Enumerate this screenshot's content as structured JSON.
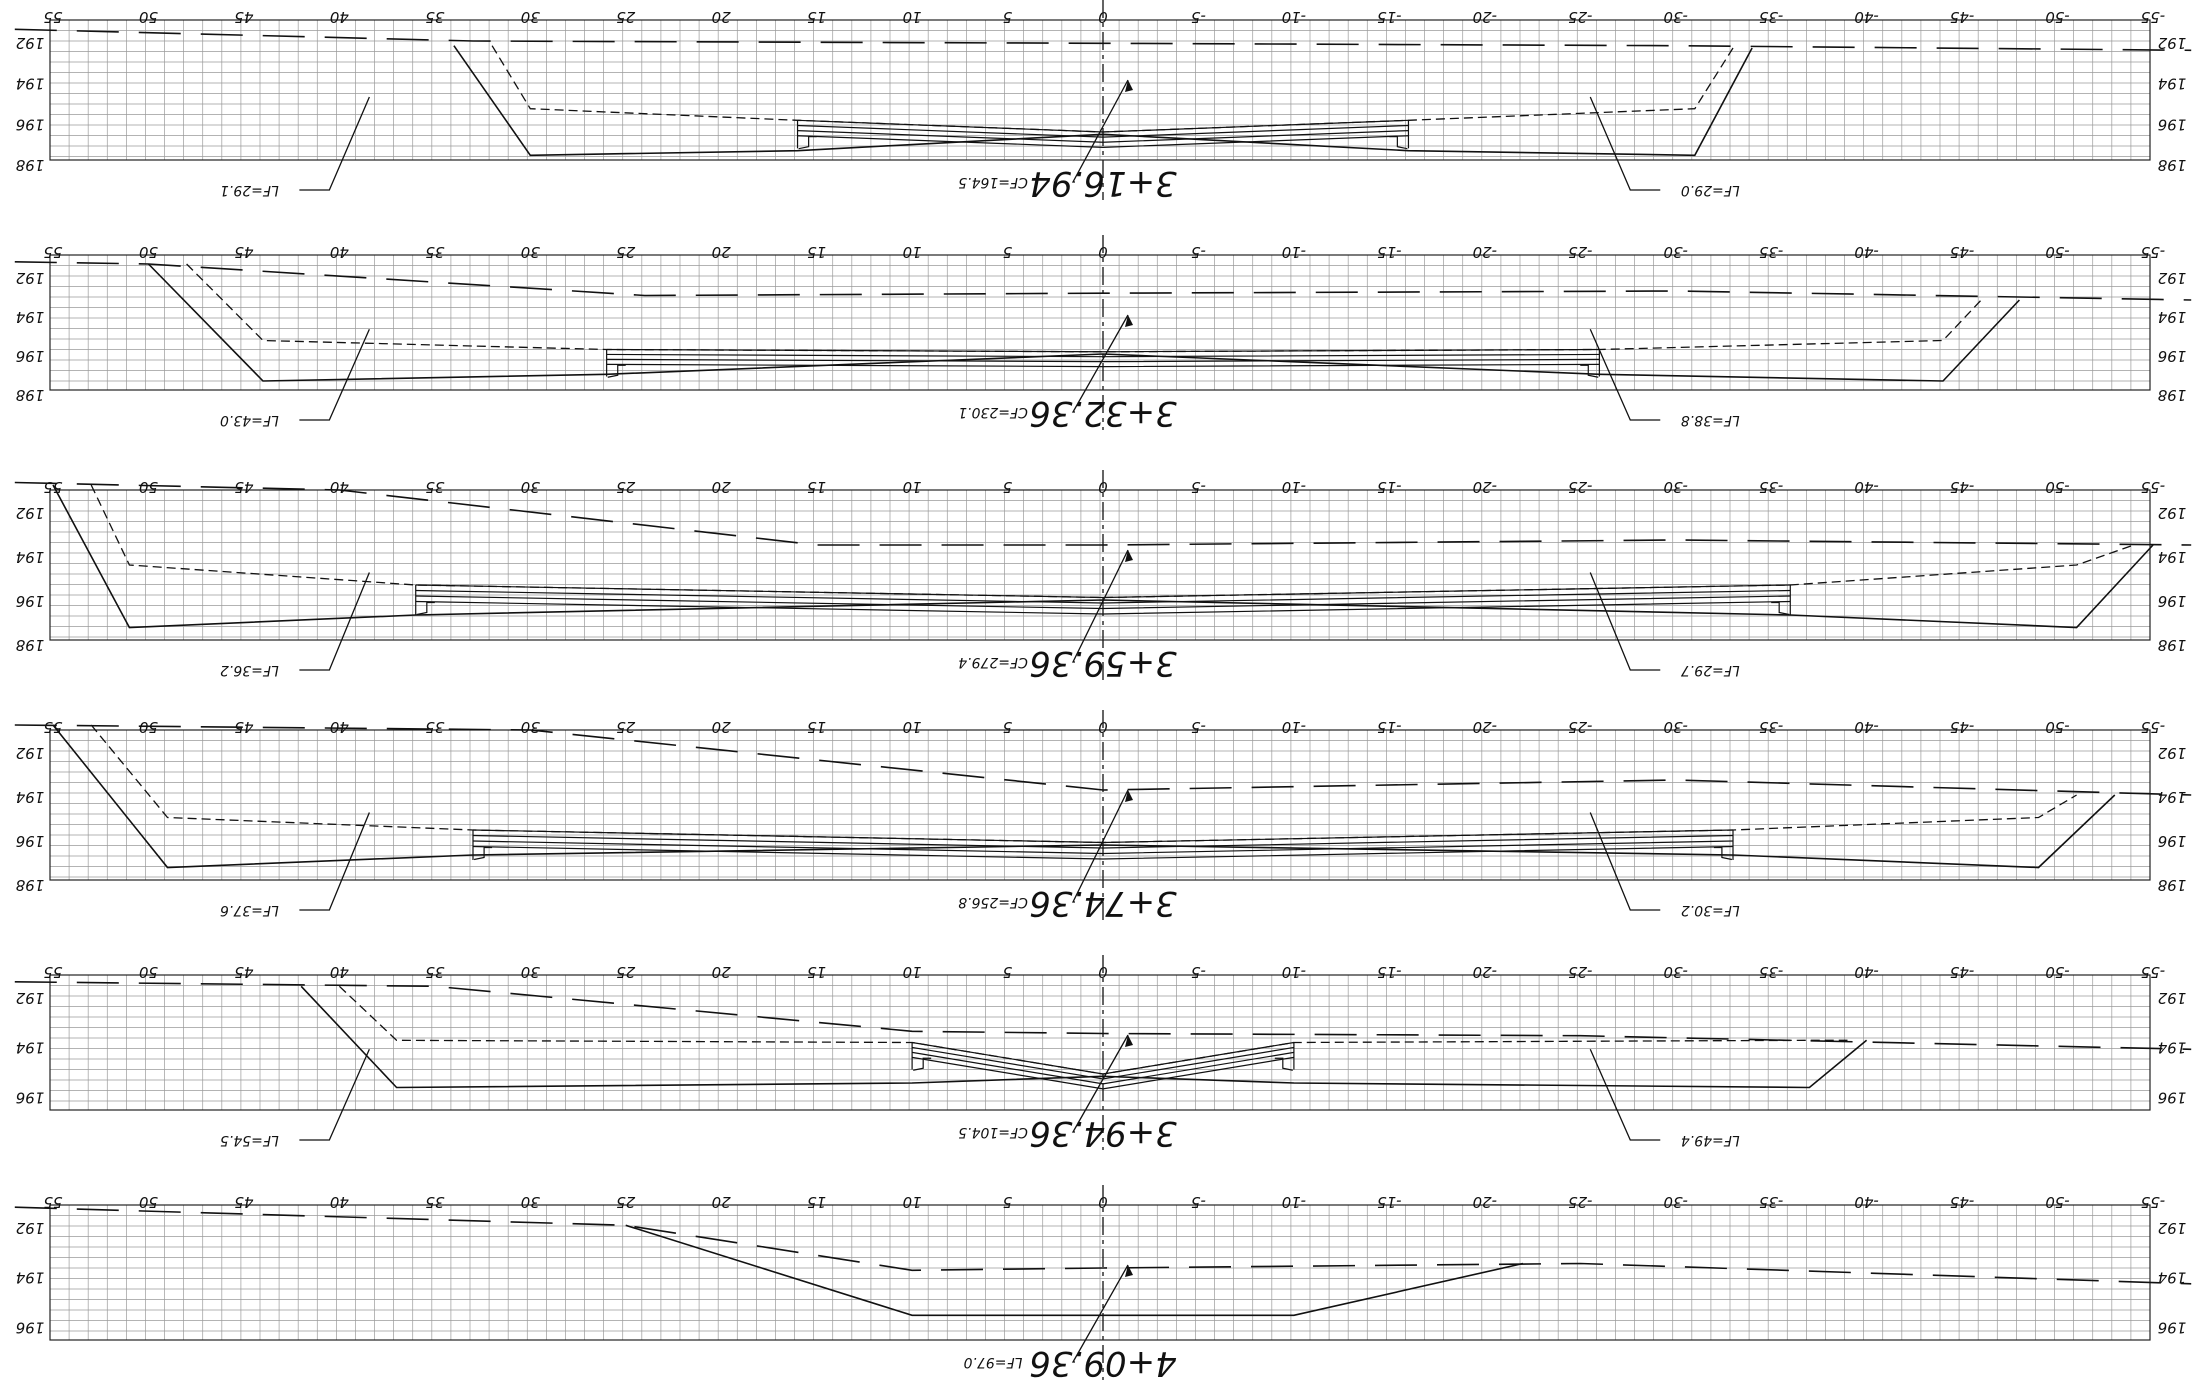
{
  "axis": {
    "offset_ticks": [
      "55",
      "50",
      "45",
      "40",
      "35",
      "30",
      "25",
      "20",
      "15",
      "10",
      "5",
      "0",
      "-5",
      "-10",
      "-15",
      "-20",
      "-25",
      "-30",
      "-35",
      "-40",
      "-45",
      "-50",
      "-55"
    ],
    "offset_min": -55,
    "offset_max": 55
  },
  "sections": [
    {
      "station": "3+16.94",
      "elev_labels": [
        "192",
        "194",
        "196",
        "198"
      ],
      "elev_range": [
        192,
        198
      ],
      "cut_fill": "CF=164.5",
      "labels_left": "LF=29.1",
      "labels_right": "LF=29.0",
      "ground": [
        [
          57,
          192.4
        ],
        [
          33,
          192.9
        ],
        [
          0,
          193.0
        ],
        [
          -30,
          193.1
        ],
        [
          -57,
          193.3
        ]
      ],
      "design": [
        [
          34,
          193.1
        ],
        [
          30,
          197.8
        ],
        [
          16,
          197.6
        ],
        [
          0,
          196.9
        ],
        [
          -16,
          197.6
        ],
        [
          -31,
          197.8
        ],
        [
          -34,
          193.2
        ]
      ],
      "base": [
        [
          32,
          193.1
        ],
        [
          30,
          195.8
        ],
        [
          16,
          196.3
        ],
        [
          0,
          196.8
        ],
        [
          -16,
          196.3
        ],
        [
          -31,
          195.8
        ],
        [
          -33,
          193.2
        ]
      ],
      "pave_edges": [
        16,
        -16
      ]
    },
    {
      "station": "3+32.36",
      "elev_labels": [
        "192",
        "194",
        "196",
        "198"
      ],
      "elev_range": [
        192,
        198
      ],
      "cut_fill": "CF=230.1",
      "labels_left": "LF=43.0",
      "labels_right": "LF=38.8",
      "ground": [
        [
          57,
          192.3
        ],
        [
          50,
          192.4
        ],
        [
          24,
          193.8
        ],
        [
          0,
          193.7
        ],
        [
          -30,
          193.6
        ],
        [
          -57,
          194.0
        ]
      ],
      "design": [
        [
          50,
          192.4
        ],
        [
          44,
          197.6
        ],
        [
          26,
          197.3
        ],
        [
          0,
          196.4
        ],
        [
          -26,
          197.3
        ],
        [
          -44,
          197.6
        ],
        [
          -48,
          194.0
        ]
      ],
      "base": [
        [
          48,
          192.4
        ],
        [
          44,
          195.8
        ],
        [
          26,
          196.2
        ],
        [
          0,
          196.3
        ],
        [
          -26,
          196.2
        ],
        [
          -44,
          195.8
        ],
        [
          -46,
          194.0
        ]
      ],
      "pave_edges": [
        26,
        -26
      ]
    },
    {
      "station": "3+59.36",
      "elev_labels": [
        "192",
        "194",
        "196",
        "198"
      ],
      "elev_range": [
        192,
        198
      ],
      "cut_fill": "CF=279.4",
      "labels_left": "LF=36.2",
      "labels_right": "LF=29.7",
      "ground": [
        [
          57,
          191.7
        ],
        [
          40,
          192.0
        ],
        [
          15,
          194.2
        ],
        [
          0,
          194.2
        ],
        [
          -30,
          194.0
        ],
        [
          -57,
          194.2
        ]
      ],
      "design": [
        [
          55,
          191.8
        ],
        [
          51,
          197.5
        ],
        [
          36,
          197.0
        ],
        [
          0,
          196.4
        ],
        [
          -36,
          197.0
        ],
        [
          -51,
          197.5
        ],
        [
          -55,
          194.2
        ]
      ],
      "base": [
        [
          53,
          191.8
        ],
        [
          51,
          195.0
        ],
        [
          36,
          195.8
        ],
        [
          0,
          196.3
        ],
        [
          -36,
          195.8
        ],
        [
          -51,
          195.0
        ],
        [
          -54,
          194.2
        ]
      ],
      "pave_edges": [
        36,
        -36
      ]
    },
    {
      "station": "3+74.36",
      "elev_labels": [
        "192",
        "194",
        "196",
        "198"
      ],
      "elev_range": [
        192,
        198
      ],
      "cut_fill": "CF=256.8",
      "labels_left": "LF=37.6",
      "labels_right": "LF=30.2",
      "ground": [
        [
          57,
          191.8
        ],
        [
          30,
          192.0
        ],
        [
          0,
          194.4
        ],
        [
          -30,
          194.0
        ],
        [
          -57,
          194.6
        ]
      ],
      "design": [
        [
          55,
          191.8
        ],
        [
          49,
          197.5
        ],
        [
          33,
          197.0
        ],
        [
          0,
          196.6
        ],
        [
          -33,
          197.0
        ],
        [
          -49,
          197.5
        ],
        [
          -53,
          194.6
        ]
      ],
      "base": [
        [
          53,
          191.8
        ],
        [
          49,
          195.5
        ],
        [
          33,
          196.0
        ],
        [
          0,
          196.5
        ],
        [
          -33,
          196.0
        ],
        [
          -49,
          195.5
        ],
        [
          -51,
          194.6
        ]
      ],
      "pave_edges": [
        33,
        -33
      ]
    },
    {
      "station": "3+94.36",
      "elev_labels": [
        "192",
        "194",
        "196"
      ],
      "elev_range": [
        191.5,
        197.5
      ],
      "cut_fill": "CF=104.5",
      "labels_left": "LF=54.5",
      "labels_right": "LF=49.4",
      "ground": [
        [
          57,
          191.8
        ],
        [
          35,
          192.0
        ],
        [
          10,
          194.0
        ],
        [
          0,
          194.1
        ],
        [
          -25,
          194.2
        ],
        [
          -57,
          194.8
        ]
      ],
      "design": [
        [
          42,
          192.0
        ],
        [
          37,
          196.5
        ],
        [
          10,
          196.3
        ],
        [
          0,
          196.0
        ],
        [
          -10,
          196.3
        ],
        [
          -37,
          196.5
        ],
        [
          -40,
          194.4
        ]
      ],
      "base": [
        [
          40,
          192.0
        ],
        [
          37,
          194.4
        ],
        [
          10,
          194.5
        ],
        [
          0,
          195.9
        ],
        [
          -10,
          194.5
        ],
        [
          -37,
          194.4
        ],
        [
          -39,
          194.4
        ]
      ],
      "pave_edges": [
        10,
        -10
      ]
    },
    {
      "station": "4+09.36",
      "elev_labels": [
        "192",
        "194",
        "196"
      ],
      "elev_range": [
        191.5,
        197.5
      ],
      "cut_fill": "LF=97.0",
      "labels_left": "",
      "labels_right": "",
      "ground": [
        [
          57,
          191.6
        ],
        [
          25,
          192.4
        ],
        [
          10,
          194.4
        ],
        [
          0,
          194.3
        ],
        [
          -25,
          194.1
        ],
        [
          -57,
          195.0
        ]
      ],
      "design": [
        [
          25,
          192.4
        ],
        [
          10,
          196.4
        ],
        [
          -10,
          196.4
        ],
        [
          -22,
          194.1
        ]
      ],
      "base": [],
      "pave_edges": []
    }
  ]
}
